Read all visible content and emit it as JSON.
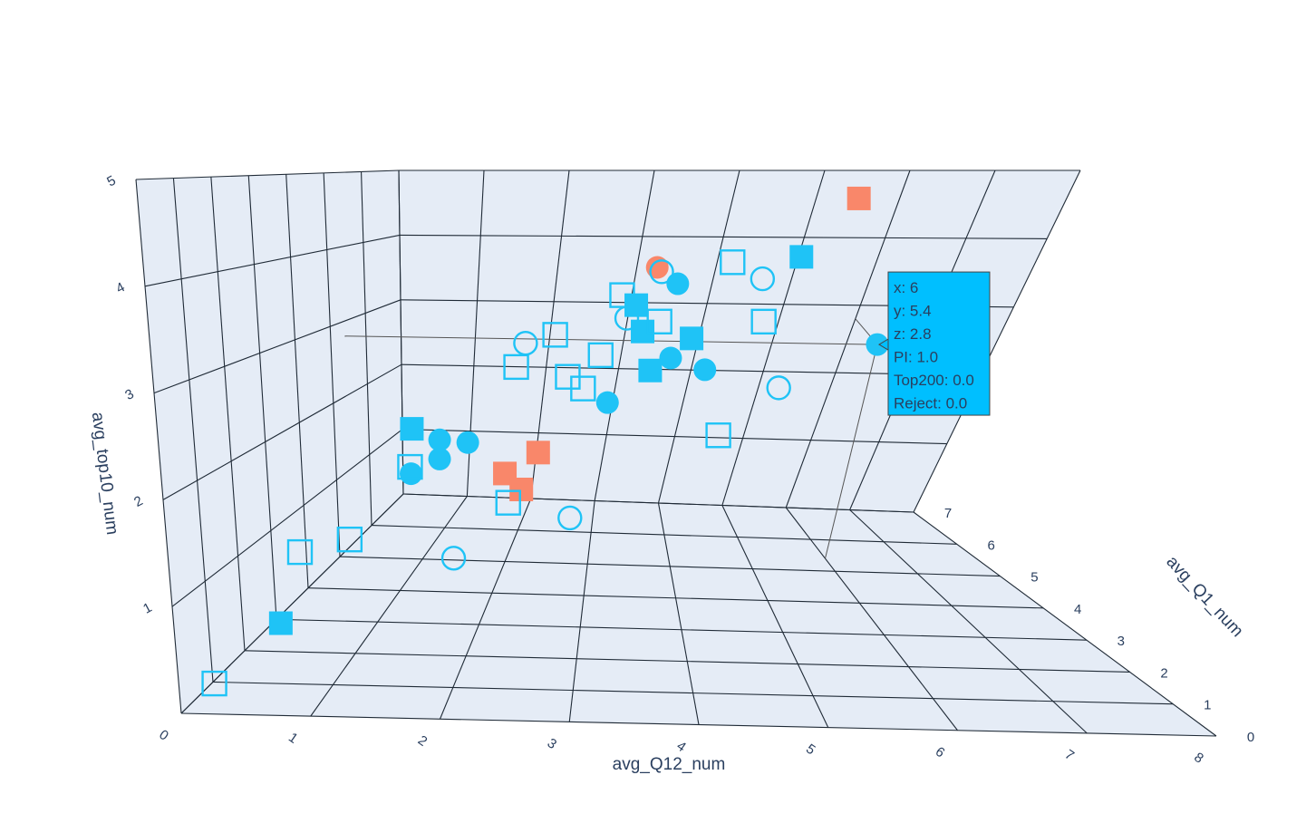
{
  "chart_data": {
    "type": "scatter3d",
    "axes": {
      "x": {
        "label": "avg_Q12_num",
        "range": [
          0,
          8
        ],
        "ticks": [
          "0",
          "1",
          "2",
          "3",
          "4",
          "5",
          "6",
          "7",
          "8"
        ]
      },
      "y": {
        "label": "avg_Q1_num",
        "range": [
          0,
          7
        ],
        "ticks": [
          "0",
          "1",
          "2",
          "3",
          "4",
          "5",
          "6",
          "7"
        ]
      },
      "z": {
        "label": "avg_top10_num",
        "range": [
          0,
          5
        ],
        "ticks": [
          "1",
          "2",
          "3",
          "4",
          "5"
        ]
      }
    },
    "colors": {
      "accepted": "#1fc3f6",
      "rejected": "#f9876a",
      "tooltip_bg": "#00bfff",
      "plot_bg": "#e5ecf6"
    },
    "encoding_legend": {
      "color": "Reject",
      "shape": "PI",
      "fill": "Top200"
    },
    "points": [
      {
        "x": 0.2,
        "y": 0.3,
        "z": 0.2,
        "shape": "square",
        "filled": false,
        "reject": false
      },
      {
        "x": 0.6,
        "y": 1.0,
        "z": 0.6,
        "shape": "square",
        "filled": true,
        "reject": false
      },
      {
        "x": 0.5,
        "y": 2.2,
        "z": 1.0,
        "shape": "square",
        "filled": false,
        "reject": false
      },
      {
        "x": 1.0,
        "y": 2.0,
        "z": 1.2,
        "shape": "square",
        "filled": false,
        "reject": false
      },
      {
        "x": 1.4,
        "y": 2.8,
        "z": 1.8,
        "shape": "square",
        "filled": false,
        "reject": false
      },
      {
        "x": 1.2,
        "y": 3.8,
        "z": 2.0,
        "shape": "square",
        "filled": true,
        "reject": false
      },
      {
        "x": 1.5,
        "y": 3.7,
        "z": 1.9,
        "shape": "circle",
        "filled": true,
        "reject": false
      },
      {
        "x": 1.3,
        "y": 3.3,
        "z": 1.6,
        "shape": "circle",
        "filled": true,
        "reject": false
      },
      {
        "x": 1.6,
        "y": 3.2,
        "z": 1.8,
        "shape": "circle",
        "filled": true,
        "reject": false
      },
      {
        "x": 1.8,
        "y": 3.6,
        "z": 1.9,
        "shape": "circle",
        "filled": true,
        "reject": false
      },
      {
        "x": 1.9,
        "y": 2.1,
        "z": 1.0,
        "shape": "circle",
        "filled": false,
        "reject": false
      },
      {
        "x": 2.3,
        "y": 2.9,
        "z": 1.4,
        "shape": "square",
        "filled": false,
        "reject": false
      },
      {
        "x": 2.2,
        "y": 3.4,
        "z": 1.6,
        "shape": "square",
        "filled": true,
        "reject": true
      },
      {
        "x": 2.4,
        "y": 3.1,
        "z": 1.5,
        "shape": "square",
        "filled": true,
        "reject": true
      },
      {
        "x": 2.5,
        "y": 3.6,
        "z": 1.8,
        "shape": "square",
        "filled": true,
        "reject": true
      },
      {
        "x": 2.9,
        "y": 2.7,
        "z": 1.3,
        "shape": "circle",
        "filled": false,
        "reject": false
      },
      {
        "x": 2.1,
        "y": 4.6,
        "z": 2.6,
        "shape": "square",
        "filled": false,
        "reject": false
      },
      {
        "x": 2.4,
        "y": 5.2,
        "z": 2.9,
        "shape": "square",
        "filled": false,
        "reject": false
      },
      {
        "x": 2.0,
        "y": 5.6,
        "z": 2.7,
        "shape": "circle",
        "filled": false,
        "reject": false
      },
      {
        "x": 2.6,
        "y": 5.0,
        "z": 2.4,
        "shape": "square",
        "filled": false,
        "reject": false
      },
      {
        "x": 2.9,
        "y": 5.4,
        "z": 2.6,
        "shape": "square",
        "filled": false,
        "reject": false
      },
      {
        "x": 2.8,
        "y": 4.8,
        "z": 2.3,
        "shape": "square",
        "filled": false,
        "reject": false
      },
      {
        "x": 3.1,
        "y": 4.5,
        "z": 2.2,
        "shape": "circle",
        "filled": true,
        "reject": false
      },
      {
        "x": 3.0,
        "y": 6.0,
        "z": 3.3,
        "shape": "square",
        "filled": false,
        "reject": false
      },
      {
        "x": 3.2,
        "y": 5.8,
        "z": 3.2,
        "shape": "square",
        "filled": true,
        "reject": false
      },
      {
        "x": 3.1,
        "y": 5.9,
        "z": 3.0,
        "shape": "circle",
        "filled": false,
        "reject": false
      },
      {
        "x": 3.3,
        "y": 6.0,
        "z": 2.8,
        "shape": "square",
        "filled": true,
        "reject": false
      },
      {
        "x": 3.5,
        "y": 5.7,
        "z": 3.0,
        "shape": "square",
        "filled": false,
        "reject": false
      },
      {
        "x": 3.4,
        "y": 6.2,
        "z": 3.6,
        "shape": "circle",
        "filled": false,
        "reject": false
      },
      {
        "x": 3.7,
        "y": 5.3,
        "z": 2.6,
        "shape": "circle",
        "filled": true,
        "reject": false
      },
      {
        "x": 3.9,
        "y": 5.6,
        "z": 2.8,
        "shape": "square",
        "filled": true,
        "reject": false
      },
      {
        "x": 3.5,
        "y": 5.0,
        "z": 2.5,
        "shape": "square",
        "filled": true,
        "reject": false
      },
      {
        "x": 4.1,
        "y": 5.1,
        "z": 2.5,
        "shape": "circle",
        "filled": true,
        "reject": false
      },
      {
        "x": 3.6,
        "y": 6.4,
        "z": 3.4,
        "shape": "circle",
        "filled": true,
        "reject": false
      },
      {
        "x": 3.3,
        "y": 6.6,
        "z": 3.6,
        "shape": "circle",
        "filled": true,
        "reject": true
      },
      {
        "x": 4.2,
        "y": 6.5,
        "z": 3.7,
        "shape": "square",
        "filled": false,
        "reject": false
      },
      {
        "x": 4.6,
        "y": 6.3,
        "z": 3.5,
        "shape": "circle",
        "filled": false,
        "reject": false
      },
      {
        "x": 4.7,
        "y": 5.8,
        "z": 3.0,
        "shape": "square",
        "filled": false,
        "reject": false
      },
      {
        "x": 4.3,
        "y": 4.2,
        "z": 1.9,
        "shape": "square",
        "filled": false,
        "reject": false
      },
      {
        "x": 4.9,
        "y": 4.6,
        "z": 2.4,
        "shape": "circle",
        "filled": false,
        "reject": false
      },
      {
        "x": 5.0,
        "y": 6.4,
        "z": 3.8,
        "shape": "square",
        "filled": true,
        "reject": false
      },
      {
        "x": 5.5,
        "y": 6.8,
        "z": 4.6,
        "shape": "square",
        "filled": true,
        "reject": true
      },
      {
        "x": 6.0,
        "y": 5.4,
        "z": 2.8,
        "shape": "circle",
        "filled": true,
        "reject": false,
        "hovered": true
      }
    ],
    "tooltip": {
      "lines": [
        "x: 6",
        "y: 5.4",
        "z: 2.8",
        "PI: 1.0",
        "Top200: 0.0",
        "Reject: 0.0"
      ]
    }
  }
}
